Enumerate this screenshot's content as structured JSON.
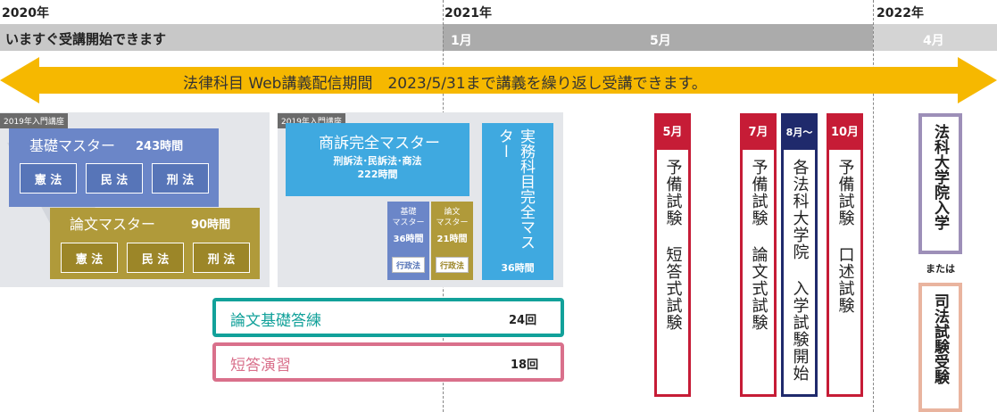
{
  "timeline": {
    "years": [
      "2020年",
      "2021年",
      "2022年"
    ],
    "now_label": "いますぐ受講開始できます",
    "months": {
      "m2021_1": "1月",
      "m2021_5": "5月",
      "m2022_4": "4月"
    },
    "arrow_text": "法律科目 Web講義配信期間　2023/5/31まで講義を繰り返し受講できます。"
  },
  "colors": {
    "arrow": "#f6b800",
    "blue": "#6b86c8",
    "olive": "#b09a3a",
    "sky": "#3fa9e0",
    "teal": "#12a19a",
    "pink": "#d9708b",
    "crimson": "#c61c36",
    "navy": "#1f2a6c",
    "lavender": "#9d8fb8",
    "salmon": "#e9b49f"
  },
  "panel1": {
    "tag": "2019年入門講座",
    "kiso": {
      "title": "基礎マスター",
      "hours": "243時間",
      "subjects": [
        "憲 法",
        "民 法",
        "刑 法"
      ]
    },
    "ronbun": {
      "title": "論文マスター",
      "hours": "90時間",
      "subjects": [
        "憲 法",
        "民 法",
        "刑 法"
      ]
    }
  },
  "panel2": {
    "tag": "2019年入門講座",
    "shoso": {
      "title": "商訴完全マスター",
      "subtitle": "刑訴法･民訴法･商法",
      "hours": "222時間"
    },
    "kiso_small": {
      "line1": "基礎",
      "line2": "マスター",
      "hours": "36時間",
      "subject": "行政法"
    },
    "ronbun_small": {
      "line1": "論文",
      "line2": "マスター",
      "hours": "21時間",
      "subject": "行政法"
    },
    "jitsumu": {
      "title": "実務科目完全マスター",
      "hours": "36時間"
    }
  },
  "courses": {
    "ronbun_kiso": {
      "label": "論文基礎答練",
      "count": "24回"
    },
    "tanto": {
      "label": "短答演習",
      "count": "18回"
    }
  },
  "exams": [
    {
      "month": "5月",
      "text": "予備試験 短答式試験"
    },
    {
      "month": "7月",
      "text": "予備試験 論文式試験"
    },
    {
      "month": "8月〜",
      "text": "各法科大学院 入学試験開始"
    },
    {
      "month": "10月",
      "text": "予備試験 口述試験"
    }
  ],
  "goals": {
    "first": "法科大学院入学",
    "or": "または",
    "second": "司法試験受験"
  }
}
